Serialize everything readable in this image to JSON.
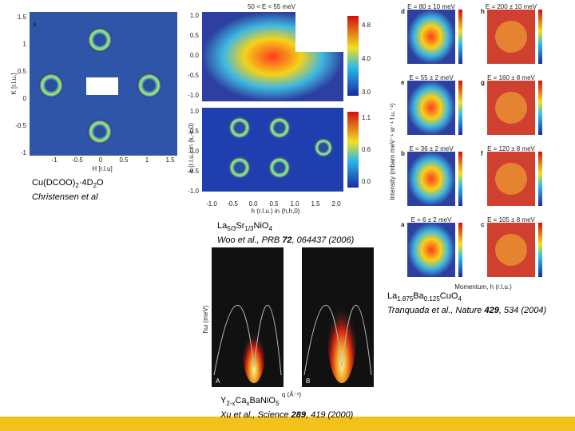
{
  "panel_a": {
    "label": "a",
    "y_axis": "K [r.l.u.]",
    "x_axis": "H [r.l.u]",
    "yticks": [
      "1.5",
      "1",
      "0.5",
      "0",
      "-0.5",
      "-1"
    ],
    "xticks": [
      "-1",
      "-0.5",
      "0",
      "0.5",
      "1",
      "1.5"
    ]
  },
  "panel_middle": {
    "title": "50 < E < 55 meV",
    "y_axis": "k (r.l.u.) in (k,-k,0)",
    "x_axis": "h (r.l.u.) in (h,h,0)",
    "yticks": [
      "1.0",
      "0.5",
      "0.0",
      "-0.5",
      "-1.0"
    ],
    "xticks": [
      "-1.0",
      "-0.5",
      "0.0",
      "0.5",
      "1.0",
      "1.5",
      "2.0"
    ],
    "colorbar_top": [
      "4.8",
      "4.0",
      "3.0"
    ],
    "colorbar_bottom": [
      "1.1",
      "0.6",
      "0.0"
    ]
  },
  "panel_right": {
    "y_axis": "Intensity (mbarn meV⁻¹ sr⁻¹ f.u.⁻¹)",
    "x_axis": "Momentum, h (r.l.u.)",
    "maps": [
      {
        "label": "d",
        "energy": "E = 80 ± 10 meV"
      },
      {
        "label": "h",
        "energy": "E = 200 ± 10 meV"
      },
      {
        "label": "e",
        "energy": "E = 55 ± 2 meV"
      },
      {
        "label": "g",
        "energy": "E = 160 ± 8 meV"
      },
      {
        "label": "b",
        "energy": "E = 36 ± 2 meV"
      },
      {
        "label": "f",
        "energy": "E = 120 ± 8 meV"
      },
      {
        "label": "a",
        "energy": "E = 6 ± 2 meV"
      },
      {
        "label": "c",
        "energy": "E = 105 ± 8 meV"
      }
    ]
  },
  "panel_bottom": {
    "y_axis": "ħω (meV)",
    "x_axis": "q (Å⁻¹)",
    "labels": [
      "A",
      "B"
    ]
  },
  "captions": [
    {
      "formula": [
        "Cu(DCOO)",
        "2",
        "·4D",
        "2",
        "O"
      ],
      "citation": [
        "Christensen et al"
      ]
    },
    {
      "formula": [
        "La",
        "5/3",
        "Sr",
        "1/3",
        "NiO",
        "4"
      ],
      "citation": [
        "Woo et al., PRB ",
        "72",
        ", 064437 (2006)"
      ]
    },
    {
      "formula": [
        "La",
        "1.875",
        "Ba",
        "0.125",
        "CuO",
        "4"
      ],
      "citation": [
        "Tranquada et al., Nature ",
        "429",
        ", 534 (2004)"
      ]
    },
    {
      "formula": [
        "Y",
        "2-x",
        "Ca",
        "x",
        "BaNiO",
        "5"
      ],
      "citation": [
        "Xu et al., Science ",
        "289",
        ", 419 (2000)"
      ]
    }
  ]
}
